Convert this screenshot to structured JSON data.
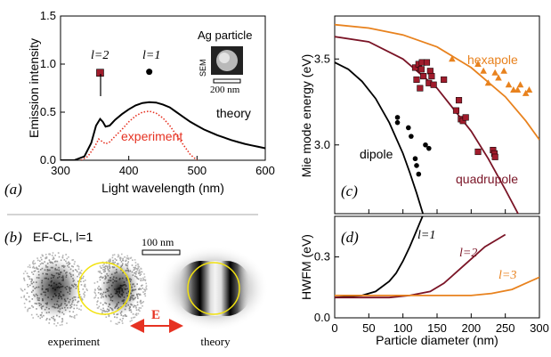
{
  "chart_data": [
    {
      "panel": "a",
      "type": "line",
      "panel_label": "(a)",
      "xlabel": "Light wavelength (nm)",
      "ylabel": "Emission intensity",
      "xlim": [
        300,
        600
      ],
      "ylim": [
        0,
        1.5
      ],
      "xticks": [
        "300",
        "400",
        "500",
        "600"
      ],
      "yticks": [
        "0.0",
        "0.5",
        "1.0",
        "1.5"
      ],
      "series": [
        {
          "name": "theory",
          "color": "#000000",
          "style": "solid",
          "x": [
            300,
            320,
            335,
            345,
            352,
            358,
            362,
            366,
            372,
            380,
            390,
            400,
            410,
            420,
            430,
            440,
            450,
            460,
            470,
            480,
            490,
            500,
            510,
            520,
            530,
            540,
            550,
            560,
            570,
            580,
            590,
            600
          ],
          "y": [
            0.0,
            0.0,
            0.04,
            0.18,
            0.36,
            0.43,
            0.4,
            0.35,
            0.36,
            0.42,
            0.48,
            0.53,
            0.57,
            0.595,
            0.605,
            0.6,
            0.58,
            0.55,
            0.5,
            0.45,
            0.4,
            0.36,
            0.32,
            0.29,
            0.26,
            0.235,
            0.21,
            0.19,
            0.17,
            0.155,
            0.14,
            0.125
          ]
        },
        {
          "name": "experiment",
          "color": "#e63222",
          "style": "dotted",
          "x": [
            330,
            340,
            350,
            356,
            360,
            366,
            372,
            380,
            390,
            400,
            410,
            420,
            430,
            440,
            450,
            460,
            470,
            480,
            490,
            500
          ],
          "y": [
            0.0,
            0.04,
            0.14,
            0.22,
            0.2,
            0.17,
            0.19,
            0.25,
            0.32,
            0.4,
            0.46,
            0.5,
            0.51,
            0.49,
            0.44,
            0.36,
            0.26,
            0.16,
            0.06,
            0.0
          ]
        }
      ],
      "markers": [
        {
          "label": "l=2",
          "x": 358,
          "y": 0.91,
          "color": "#a01c2c",
          "shape": "square"
        },
        {
          "label": "l=1",
          "x": 430,
          "y": 0.92,
          "color": "#000000",
          "shape": "circle"
        }
      ],
      "series_labels": {
        "theory": "theory",
        "experiment": "experiment"
      },
      "inset": {
        "title": "Ag particle",
        "side_label": "SEM",
        "scale_label": "200 nm"
      }
    },
    {
      "panel": "b",
      "type": "image",
      "panel_label": "(b)",
      "title": "EF-CL, l=1",
      "scale_label": "100 nm",
      "field_label": "E",
      "captions": [
        "experiment",
        "theory"
      ]
    },
    {
      "panel": "c",
      "type": "scatter",
      "panel_label": "(c)",
      "ylabel": "Mie mode energy (eV)",
      "xlim": [
        0,
        300
      ],
      "ylim": [
        2.6,
        3.75
      ],
      "yticks": [
        "3.0",
        "3.5"
      ],
      "curves": [
        {
          "name": "dipole",
          "color": "#000000",
          "x": [
            0,
            20,
            40,
            60,
            80,
            100,
            110,
            120,
            130
          ],
          "y": [
            3.48,
            3.44,
            3.37,
            3.27,
            3.13,
            2.95,
            2.84,
            2.72,
            2.59
          ]
        },
        {
          "name": "quadrupole",
          "color": "#7a1426",
          "x": [
            0,
            50,
            100,
            150,
            200,
            225,
            250,
            270
          ],
          "y": [
            3.63,
            3.6,
            3.5,
            3.33,
            3.08,
            2.92,
            2.74,
            2.59
          ]
        },
        {
          "name": "hexapole",
          "color": "#e8821e",
          "x": [
            0,
            50,
            100,
            150,
            200,
            250,
            280,
            300
          ],
          "y": [
            3.7,
            3.68,
            3.64,
            3.57,
            3.45,
            3.28,
            3.14,
            3.03
          ]
        }
      ],
      "points": [
        {
          "name": "dipole",
          "color": "#000000",
          "shape": "circle",
          "x": [
            92,
            92,
            108,
            112,
            118,
            120,
            123,
            133,
            138
          ],
          "y": [
            3.16,
            3.13,
            3.1,
            3.05,
            2.92,
            2.88,
            2.83,
            3.0,
            2.98
          ]
        },
        {
          "name": "quadrupole",
          "color": "#a01c2c",
          "shape": "square",
          "x": [
            118,
            120,
            123,
            125,
            127,
            128,
            130,
            135,
            138,
            140,
            142,
            145,
            160,
            178,
            182,
            185,
            188,
            192,
            210,
            232,
            234,
            235
          ],
          "y": [
            3.45,
            3.38,
            3.47,
            3.33,
            3.44,
            3.48,
            3.4,
            3.48,
            3.36,
            3.43,
            3.4,
            3.35,
            3.38,
            3.2,
            3.26,
            3.15,
            3.14,
            3.16,
            2.96,
            2.97,
            2.95,
            2.93
          ]
        },
        {
          "name": "hexapole",
          "color": "#e8821e",
          "shape": "triangle",
          "x": [
            172,
            210,
            218,
            225,
            235,
            240,
            248,
            255,
            262,
            268,
            272,
            280,
            285
          ],
          "y": [
            3.5,
            3.47,
            3.43,
            3.36,
            3.42,
            3.39,
            3.43,
            3.35,
            3.32,
            3.32,
            3.35,
            3.3,
            3.32
          ]
        }
      ],
      "curve_labels": {
        "dipole": "dipole",
        "quadrupole": "quadrupole",
        "hexapole": "hexapole"
      }
    },
    {
      "panel": "d",
      "type": "line",
      "panel_label": "(d)",
      "xlabel": "Particle diameter (nm)",
      "ylabel": "HWFM (eV)",
      "xlim": [
        0,
        300
      ],
      "ylim": [
        0,
        0.5
      ],
      "xticks": [
        "0",
        "50",
        "100",
        "150",
        "200",
        "250",
        "300"
      ],
      "yticks": [
        "0.0",
        "0.3"
      ],
      "series": [
        {
          "name": "l=1",
          "color": "#000000",
          "x": [
            0,
            40,
            60,
            80,
            90,
            100,
            110,
            120,
            125,
            130
          ],
          "y": [
            0.1,
            0.11,
            0.13,
            0.18,
            0.22,
            0.28,
            0.35,
            0.43,
            0.47,
            0.51
          ]
        },
        {
          "name": "l=2",
          "color": "#7a1426",
          "x": [
            0,
            80,
            110,
            140,
            160,
            180,
            200,
            220,
            240,
            250
          ],
          "y": [
            0.1,
            0.1,
            0.11,
            0.13,
            0.17,
            0.23,
            0.29,
            0.35,
            0.39,
            0.41
          ]
        },
        {
          "name": "l=3",
          "color": "#e8821e",
          "x": [
            0,
            50,
            100,
            150,
            200,
            230,
            260,
            280,
            300
          ],
          "y": [
            0.11,
            0.11,
            0.11,
            0.11,
            0.11,
            0.12,
            0.14,
            0.17,
            0.2
          ]
        }
      ],
      "series_labels": {
        "l1": "l=1",
        "l2": "l=2",
        "l3": "l=3"
      }
    }
  ]
}
